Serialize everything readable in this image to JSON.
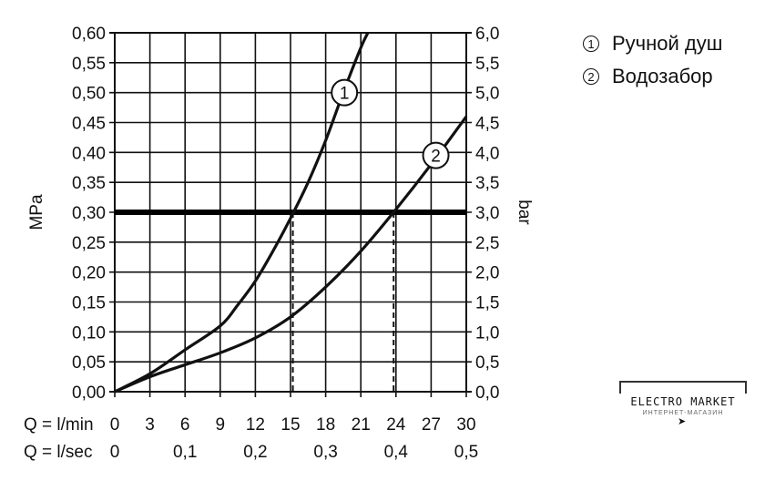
{
  "legend": {
    "items": [
      {
        "num": "1",
        "label": "Ручной душ"
      },
      {
        "num": "2",
        "label": "Водозабор"
      }
    ]
  },
  "watermark": {
    "text": "ELECTRO MARKET",
    "sub": "ИНТЕРНЕТ-МАГАЗИН"
  },
  "chart_data": {
    "type": "line",
    "ylabel_left": "MPa",
    "ylabel_right": "bar",
    "x_rows": [
      {
        "label": "Q = l/min",
        "ticks": [
          "0",
          "3",
          "6",
          "9",
          "12",
          "15",
          "18",
          "21",
          "24",
          "27",
          "30"
        ],
        "positions": [
          0,
          3,
          6,
          9,
          12,
          15,
          18,
          21,
          24,
          27,
          30
        ]
      },
      {
        "label": "Q = l/sec",
        "ticks": [
          "0",
          "0,1",
          "0,2",
          "0,3",
          "0,4",
          "0,5"
        ],
        "positions": [
          0,
          6,
          12,
          18,
          24,
          30
        ]
      }
    ],
    "xlim": [
      0,
      30
    ],
    "ylim": [
      0,
      0.6
    ],
    "y_ticks_left": [
      "0,00",
      "0,05",
      "0,10",
      "0,15",
      "0,20",
      "0,25",
      "0,30",
      "0,35",
      "0,40",
      "0,45",
      "0,50",
      "0,55",
      "0,60"
    ],
    "y_ticks_right": [
      "0,0",
      "0,5",
      "1,0",
      "1,5",
      "2,0",
      "2,5",
      "3,0",
      "3,5",
      "4,0",
      "4,5",
      "5,0",
      "5,5",
      "6,0"
    ],
    "grid": true,
    "reference_line": {
      "y": 0.3
    },
    "markers": [
      {
        "x": 15.2,
        "y": 0.3
      },
      {
        "x": 23.8,
        "y": 0.3
      }
    ],
    "series": [
      {
        "name": "1",
        "label_at": {
          "x": 19.6,
          "y": 0.5
        },
        "x": [
          0,
          3,
          6,
          9,
          10.5,
          12,
          13.5,
          15,
          16.5,
          18,
          19.5,
          21,
          21.6
        ],
        "y": [
          0,
          0.03,
          0.07,
          0.11,
          0.145,
          0.185,
          0.235,
          0.29,
          0.35,
          0.42,
          0.5,
          0.575,
          0.6
        ]
      },
      {
        "name": "2",
        "label_at": {
          "x": 27.4,
          "y": 0.395
        },
        "x": [
          0,
          3,
          6,
          9,
          12,
          15,
          18,
          21,
          24,
          27,
          30
        ],
        "y": [
          0,
          0.025,
          0.045,
          0.065,
          0.09,
          0.125,
          0.175,
          0.235,
          0.305,
          0.38,
          0.46
        ]
      }
    ]
  }
}
